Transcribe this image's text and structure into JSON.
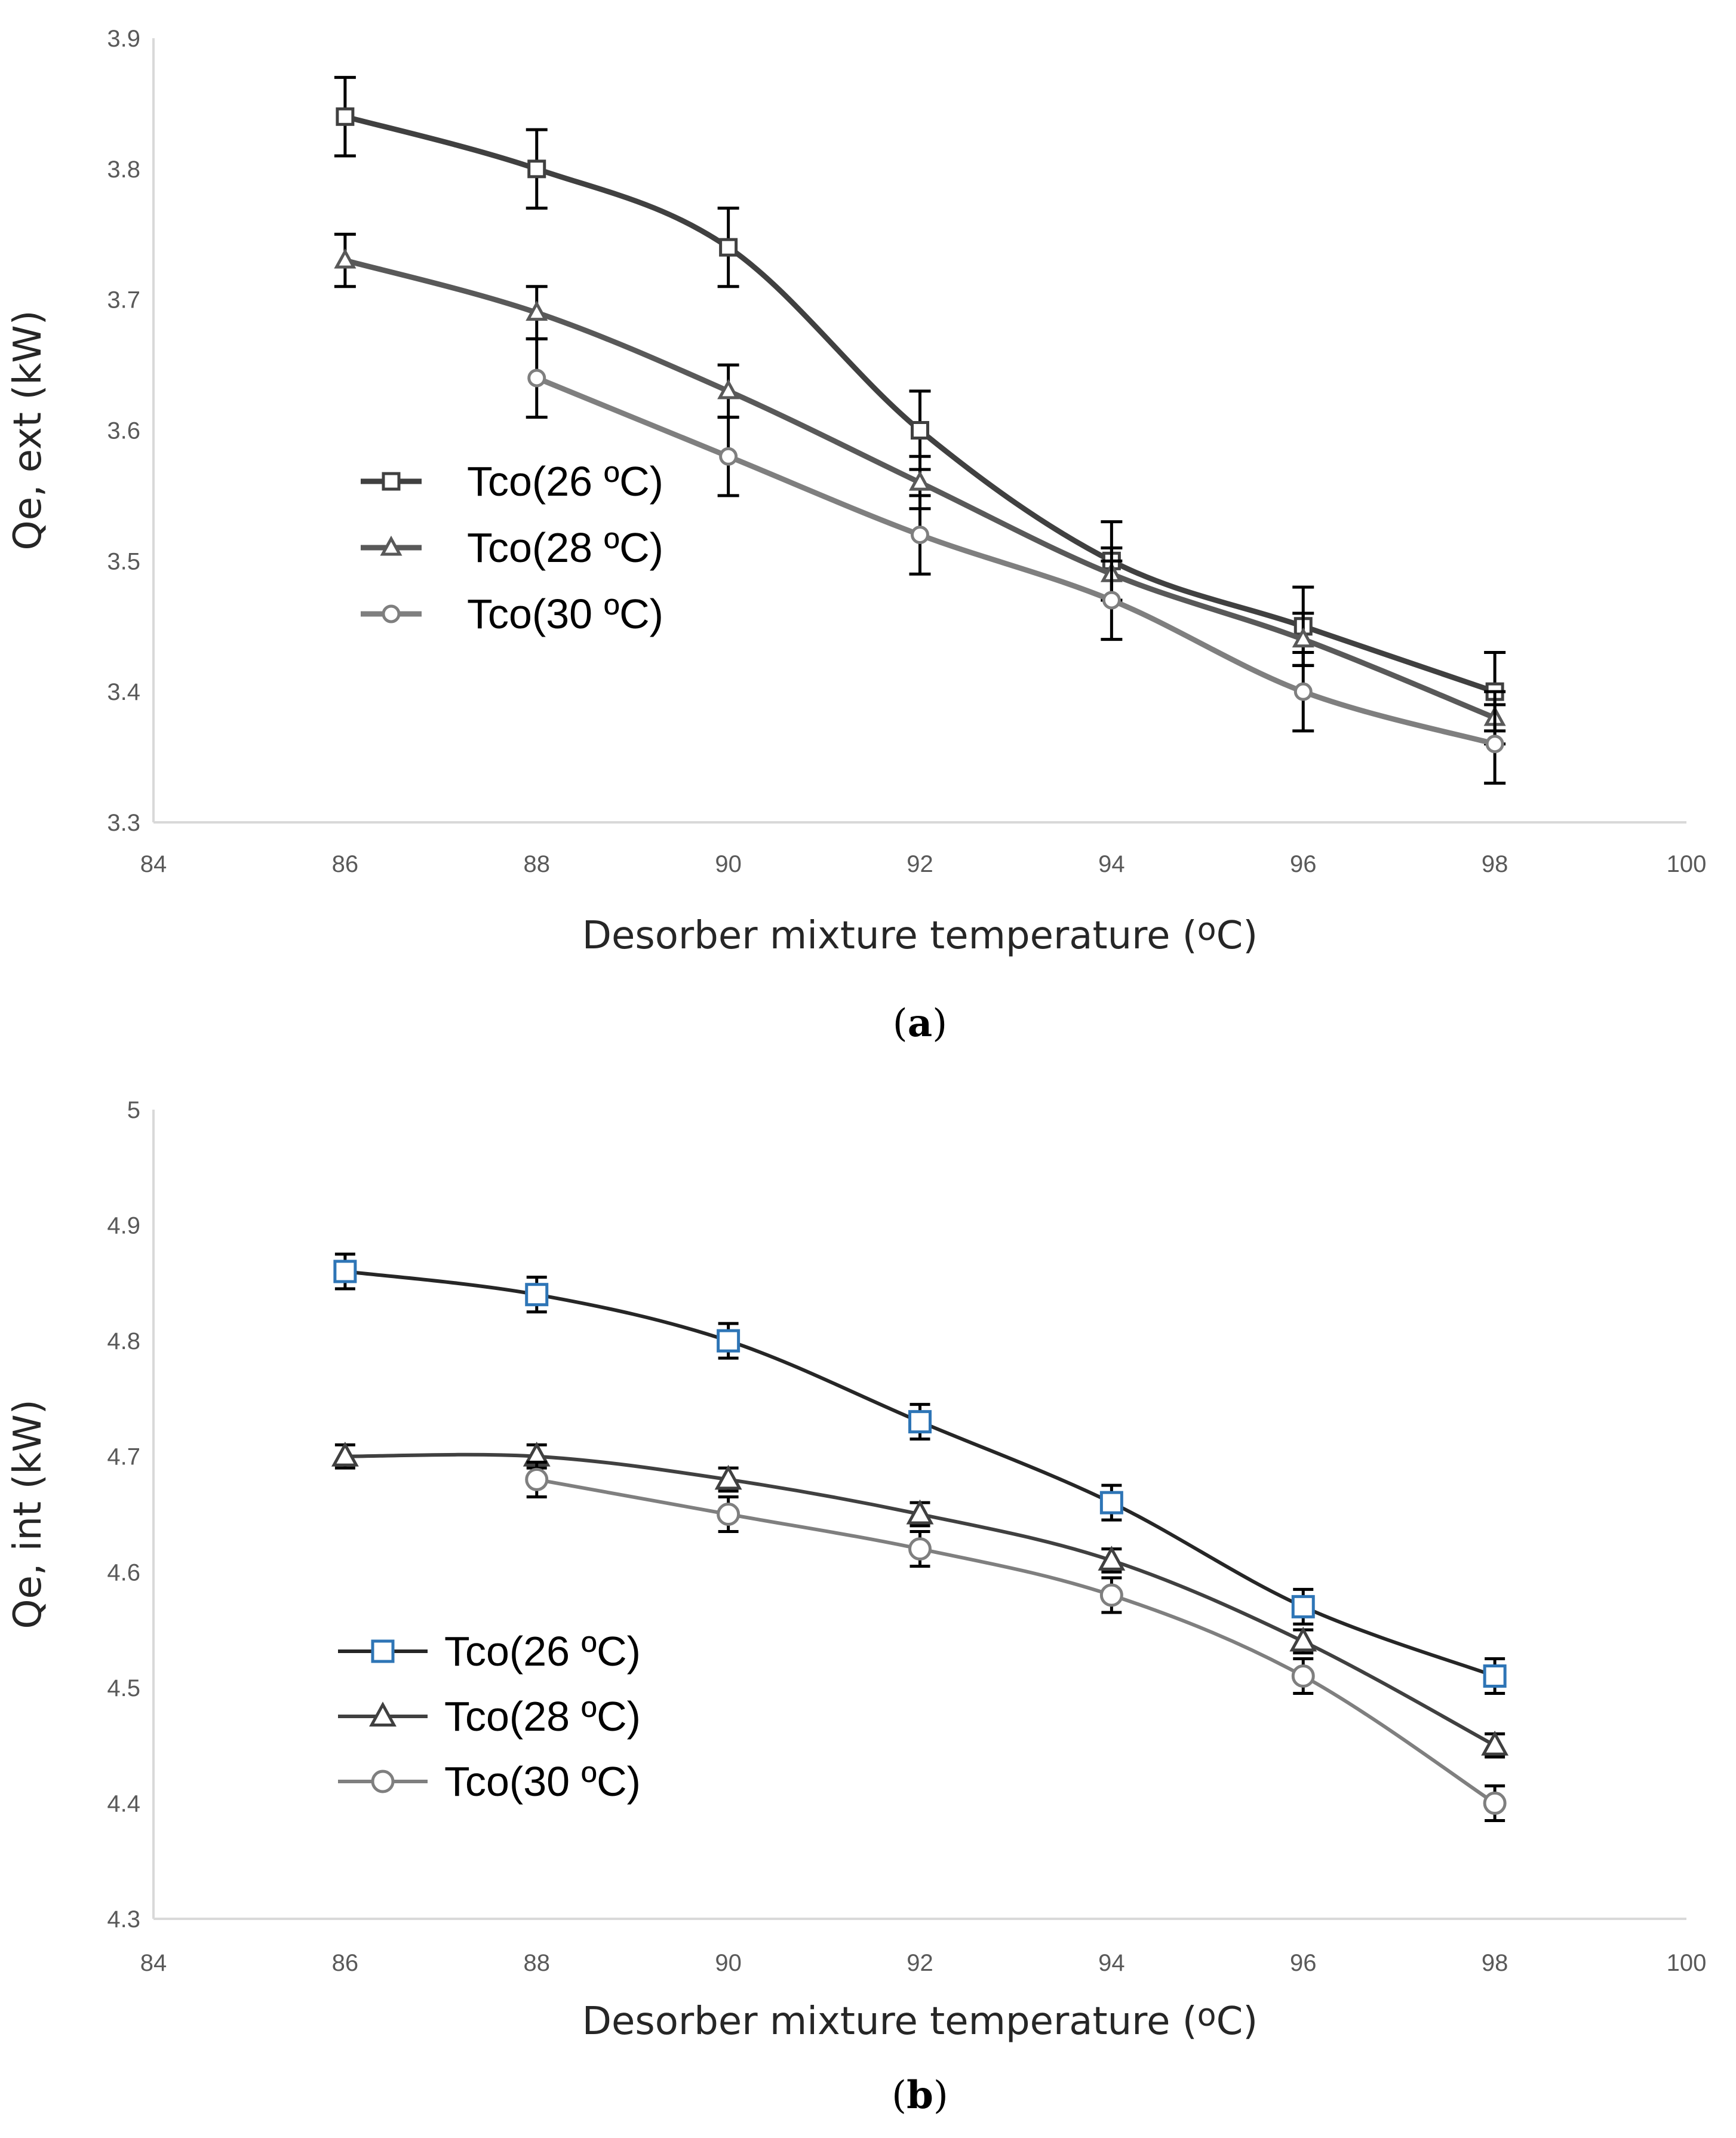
{
  "chart_data": [
    {
      "type": "line",
      "panel_label": "a",
      "panel_open": "(",
      "panel_close": ")",
      "title": "",
      "xlabel": "Desorber mixture temperature (",
      "xlabel_unit": "o",
      "xlabel_end": "C)",
      "ylabel": "Qe, ext (kW)",
      "xlim": [
        84,
        100
      ],
      "ylim": [
        3.3,
        3.9
      ],
      "xticks": [
        "84",
        "86",
        "88",
        "90",
        "92",
        "94",
        "96",
        "98",
        "100"
      ],
      "yticks": [
        "3.3",
        "3.4",
        "3.5",
        "3.6",
        "3.7",
        "3.8",
        "3.9"
      ],
      "legend_position": "center-left",
      "series": [
        {
          "name": "Tco(26 ºC)",
          "marker": "square",
          "color": "#404040",
          "marker_color": "#404040",
          "x": [
            86,
            88,
            90,
            92,
            94,
            96,
            98
          ],
          "y": [
            3.84,
            3.8,
            3.74,
            3.6,
            3.5,
            3.45,
            3.4
          ],
          "error": 0.03
        },
        {
          "name": "Tco(28 ºC)",
          "marker": "triangle",
          "color": "#595959",
          "marker_color": "#595959",
          "x": [
            86,
            88,
            90,
            92,
            94,
            96,
            98
          ],
          "y": [
            3.73,
            3.69,
            3.63,
            3.56,
            3.49,
            3.44,
            3.38
          ],
          "error": 0.02
        },
        {
          "name": "Tco(30 ºC)",
          "marker": "circle",
          "color": "#7f7f7f",
          "marker_color": "#7f7f7f",
          "x": [
            88,
            90,
            92,
            94,
            96,
            98
          ],
          "y": [
            3.64,
            3.58,
            3.52,
            3.47,
            3.4,
            3.36
          ],
          "error": 0.03
        }
      ]
    },
    {
      "type": "line",
      "panel_label": "b",
      "panel_open": "(",
      "panel_close": ")",
      "title": "",
      "xlabel": "Desorber mixture temperature (",
      "xlabel_unit": "o",
      "xlabel_end": "C)",
      "ylabel": "Qe, int (kW)",
      "xlim": [
        84,
        100
      ],
      "ylim": [
        4.3,
        5.0
      ],
      "xticks": [
        "84",
        "86",
        "88",
        "90",
        "92",
        "94",
        "96",
        "98",
        "100"
      ],
      "yticks": [
        "4.3",
        "4.4",
        "4.5",
        "4.6",
        "4.7",
        "4.8",
        "4.9",
        "5"
      ],
      "legend_position": "bottom-left",
      "series": [
        {
          "name": "Tco(26 ºC)",
          "marker": "square",
          "color": "#262626",
          "marker_color": "#2e75b6",
          "x": [
            86,
            88,
            90,
            92,
            94,
            96,
            98
          ],
          "y": [
            4.86,
            4.84,
            4.8,
            4.73,
            4.66,
            4.57,
            4.51
          ],
          "error": 0.015
        },
        {
          "name": "Tco(28 ºC)",
          "marker": "triangle",
          "color": "#404040",
          "marker_color": "#404040",
          "x": [
            86,
            88,
            90,
            92,
            94,
            96,
            98
          ],
          "y": [
            4.7,
            4.7,
            4.68,
            4.65,
            4.61,
            4.54,
            4.45
          ],
          "error": 0.01
        },
        {
          "name": "Tco(30 ºC)",
          "marker": "circle",
          "color": "#7f7f7f",
          "marker_color": "#7f7f7f",
          "x": [
            88,
            90,
            92,
            94,
            96,
            98
          ],
          "y": [
            4.68,
            4.65,
            4.62,
            4.58,
            4.51,
            4.4
          ],
          "error": 0.015
        }
      ]
    }
  ]
}
